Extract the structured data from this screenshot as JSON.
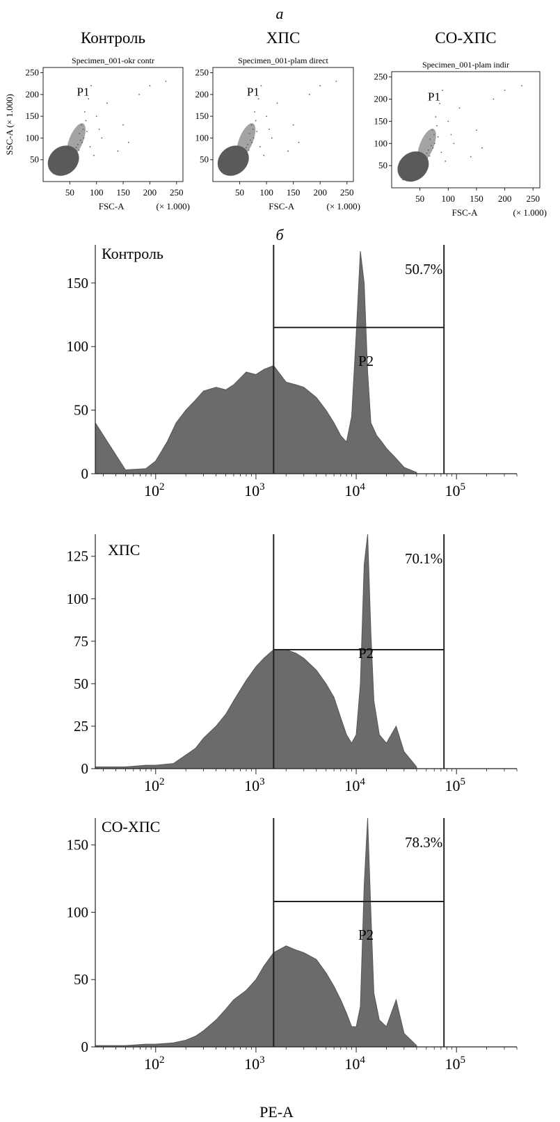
{
  "panel_a_label": "а",
  "panel_b_label": "б",
  "colors": {
    "fill": "#6b6b6b",
    "dots": "#5a5a5a",
    "axis": "#222222"
  },
  "chart_data": [
    {
      "type": "scatter",
      "group_title": "Контроль",
      "title": "Specimen_001-okr contr",
      "xlabel": "FSC-A",
      "ylabel": "SSC-A",
      "axis_scale_label": "(× 1.000)",
      "xlim": [
        0,
        262
      ],
      "ylim": [
        0,
        262
      ],
      "xticks": [
        50,
        100,
        150,
        200,
        250
      ],
      "yticks": [
        50,
        100,
        150,
        200,
        250
      ],
      "gate": "P1",
      "points": [
        [
          20,
          18
        ],
        [
          25,
          30
        ],
        [
          30,
          22
        ],
        [
          35,
          40
        ],
        [
          40,
          35
        ],
        [
          45,
          55
        ],
        [
          50,
          45
        ],
        [
          55,
          70
        ],
        [
          60,
          60
        ],
        [
          65,
          85
        ],
        [
          70,
          95
        ],
        [
          75,
          120
        ],
        [
          80,
          140
        ],
        [
          45,
          30
        ],
        [
          38,
          25
        ],
        [
          52,
          62
        ],
        [
          58,
          50
        ],
        [
          62,
          78
        ],
        [
          68,
          110
        ],
        [
          72,
          130
        ],
        [
          78,
          160
        ],
        [
          85,
          190
        ],
        [
          90,
          220
        ],
        [
          100,
          150
        ],
        [
          110,
          100
        ],
        [
          120,
          180
        ],
        [
          150,
          130
        ],
        [
          180,
          200
        ],
        [
          200,
          220
        ],
        [
          230,
          230
        ],
        [
          140,
          70
        ],
        [
          160,
          90
        ],
        [
          95,
          60
        ],
        [
          105,
          120
        ],
        [
          88,
          80
        ],
        [
          30,
          45
        ],
        [
          42,
          50
        ],
        [
          48,
          38
        ],
        [
          55,
          40
        ],
        [
          36,
          30
        ],
        [
          28,
          26
        ],
        [
          22,
          20
        ],
        [
          33,
          28
        ],
        [
          47,
          42
        ],
        [
          57,
          55
        ],
        [
          63,
          66
        ],
        [
          67,
          72
        ],
        [
          73,
          90
        ],
        [
          76,
          100
        ],
        [
          82,
          115
        ]
      ]
    },
    {
      "type": "scatter",
      "group_title": "ХПС",
      "title": "Specimen_001-plam direct",
      "xlabel": "FSC-A",
      "ylabel": "",
      "axis_scale_label": "(× 1.000)",
      "xlim": [
        0,
        262
      ],
      "ylim": [
        0,
        262
      ],
      "xticks": [
        50,
        100,
        150,
        200,
        250
      ],
      "yticks": [
        50,
        100,
        150,
        200,
        250
      ],
      "gate": "P1",
      "points": [
        [
          20,
          18
        ],
        [
          25,
          30
        ],
        [
          30,
          22
        ],
        [
          35,
          40
        ],
        [
          40,
          35
        ],
        [
          45,
          55
        ],
        [
          50,
          45
        ],
        [
          55,
          70
        ],
        [
          60,
          60
        ],
        [
          65,
          85
        ],
        [
          70,
          95
        ],
        [
          75,
          120
        ],
        [
          80,
          140
        ],
        [
          45,
          30
        ],
        [
          38,
          25
        ],
        [
          52,
          62
        ],
        [
          58,
          50
        ],
        [
          62,
          78
        ],
        [
          68,
          110
        ],
        [
          72,
          130
        ],
        [
          78,
          160
        ],
        [
          85,
          190
        ],
        [
          90,
          220
        ],
        [
          100,
          150
        ],
        [
          110,
          100
        ],
        [
          120,
          180
        ],
        [
          150,
          130
        ],
        [
          180,
          200
        ],
        [
          200,
          220
        ],
        [
          230,
          230
        ],
        [
          140,
          70
        ],
        [
          160,
          90
        ],
        [
          95,
          60
        ],
        [
          105,
          120
        ],
        [
          88,
          80
        ],
        [
          30,
          45
        ],
        [
          42,
          50
        ],
        [
          48,
          38
        ],
        [
          55,
          40
        ],
        [
          36,
          30
        ],
        [
          28,
          26
        ],
        [
          22,
          20
        ],
        [
          33,
          28
        ],
        [
          47,
          42
        ],
        [
          57,
          55
        ],
        [
          63,
          66
        ],
        [
          67,
          72
        ],
        [
          73,
          90
        ],
        [
          76,
          100
        ],
        [
          82,
          115
        ]
      ]
    },
    {
      "type": "scatter",
      "group_title": "СО-ХПС",
      "title": "Specimen_001-plam indir",
      "xlabel": "FSC-A",
      "ylabel": "",
      "axis_scale_label": "(× 1.000)",
      "xlim": [
        0,
        262
      ],
      "ylim": [
        0,
        262
      ],
      "xticks": [
        50,
        100,
        150,
        200,
        250
      ],
      "yticks": [
        50,
        100,
        150,
        200,
        250
      ],
      "gate": "P1",
      "points": [
        [
          20,
          18
        ],
        [
          25,
          30
        ],
        [
          30,
          22
        ],
        [
          35,
          40
        ],
        [
          40,
          35
        ],
        [
          45,
          55
        ],
        [
          50,
          45
        ],
        [
          55,
          70
        ],
        [
          60,
          60
        ],
        [
          65,
          85
        ],
        [
          70,
          95
        ],
        [
          75,
          120
        ],
        [
          80,
          140
        ],
        [
          45,
          30
        ],
        [
          38,
          25
        ],
        [
          52,
          62
        ],
        [
          58,
          50
        ],
        [
          62,
          78
        ],
        [
          68,
          110
        ],
        [
          72,
          130
        ],
        [
          78,
          160
        ],
        [
          85,
          190
        ],
        [
          90,
          220
        ],
        [
          100,
          150
        ],
        [
          110,
          100
        ],
        [
          120,
          180
        ],
        [
          150,
          130
        ],
        [
          180,
          200
        ],
        [
          200,
          220
        ],
        [
          230,
          230
        ],
        [
          140,
          70
        ],
        [
          160,
          90
        ],
        [
          95,
          60
        ],
        [
          105,
          120
        ],
        [
          88,
          80
        ],
        [
          30,
          45
        ],
        [
          42,
          50
        ],
        [
          48,
          38
        ],
        [
          55,
          40
        ],
        [
          36,
          30
        ],
        [
          28,
          26
        ],
        [
          22,
          20
        ],
        [
          33,
          28
        ],
        [
          47,
          42
        ],
        [
          57,
          55
        ],
        [
          63,
          66
        ],
        [
          67,
          72
        ],
        [
          73,
          90
        ],
        [
          76,
          100
        ],
        [
          82,
          115
        ]
      ]
    },
    {
      "type": "area",
      "title": "Контроль",
      "xlabel": "",
      "ylabel": "",
      "xscale": "log",
      "xlim": [
        25,
        400000
      ],
      "ylim": [
        0,
        180
      ],
      "xticks": [
        "10^2",
        "10^3",
        "10^4",
        "10^5"
      ],
      "yticks": [
        0,
        50,
        100,
        150
      ],
      "gate": {
        "name": "P2",
        "percent": "50.7%",
        "x_start": 1500,
        "x_end": 75000,
        "y_level": 115
      },
      "x": [
        25,
        50,
        80,
        100,
        130,
        160,
        200,
        250,
        300,
        400,
        500,
        600,
        800,
        1000,
        1200,
        1500,
        2000,
        2500,
        3000,
        4000,
        5000,
        6000,
        7000,
        8000,
        9000,
        10000,
        11000,
        12000,
        13000,
        14000,
        16000,
        18000,
        20000,
        25000,
        30000,
        40000
      ],
      "values": [
        40,
        3,
        4,
        10,
        25,
        40,
        50,
        58,
        65,
        68,
        66,
        70,
        80,
        78,
        82,
        85,
        72,
        70,
        68,
        60,
        50,
        40,
        30,
        25,
        45,
        110,
        175,
        150,
        80,
        40,
        30,
        25,
        20,
        12,
        5,
        1
      ]
    },
    {
      "type": "area",
      "title": "ХПС",
      "xlabel": "",
      "ylabel": "",
      "xscale": "log",
      "xlim": [
        25,
        400000
      ],
      "ylim": [
        0,
        138
      ],
      "xticks": [
        "10^2",
        "10^3",
        "10^4",
        "10^5"
      ],
      "yticks": [
        0,
        25,
        50,
        75,
        100,
        125
      ],
      "gate": {
        "name": "P2",
        "percent": "70.1%",
        "x_start": 1500,
        "x_end": 75000,
        "y_level": 70
      },
      "x": [
        25,
        50,
        80,
        100,
        150,
        200,
        250,
        300,
        400,
        500,
        600,
        800,
        1000,
        1200,
        1500,
        2000,
        2500,
        3000,
        4000,
        5000,
        6000,
        7000,
        8000,
        9000,
        10000,
        11000,
        12000,
        13000,
        14000,
        15000,
        17000,
        20000,
        25000,
        30000,
        40000
      ],
      "values": [
        1,
        1,
        2,
        2,
        3,
        8,
        12,
        18,
        25,
        32,
        40,
        52,
        60,
        65,
        70,
        70,
        68,
        65,
        58,
        50,
        42,
        30,
        20,
        15,
        20,
        50,
        120,
        138,
        80,
        40,
        20,
        15,
        25,
        10,
        1
      ]
    },
    {
      "type": "area",
      "title": "СО-ХПС",
      "xlabel": "PE-A",
      "ylabel": "",
      "xscale": "log",
      "xlim": [
        25,
        400000
      ],
      "ylim": [
        0,
        170
      ],
      "xticks": [
        "10^2",
        "10^3",
        "10^4",
        "10^5"
      ],
      "yticks": [
        0,
        50,
        100,
        150
      ],
      "gate": {
        "name": "P2",
        "percent": "78.3%",
        "x_start": 1500,
        "x_end": 75000,
        "y_level": 108
      },
      "x": [
        25,
        50,
        80,
        100,
        150,
        200,
        250,
        300,
        400,
        500,
        600,
        800,
        1000,
        1200,
        1500,
        2000,
        2500,
        3000,
        4000,
        5000,
        6000,
        7000,
        8000,
        9000,
        10000,
        11000,
        12000,
        13000,
        14000,
        15000,
        17000,
        20000,
        25000,
        30000,
        40000
      ],
      "values": [
        1,
        1,
        2,
        2,
        3,
        5,
        8,
        12,
        20,
        28,
        35,
        42,
        50,
        60,
        70,
        75,
        72,
        70,
        65,
        55,
        45,
        35,
        25,
        15,
        15,
        30,
        120,
        170,
        100,
        40,
        20,
        15,
        35,
        10,
        1
      ]
    }
  ]
}
